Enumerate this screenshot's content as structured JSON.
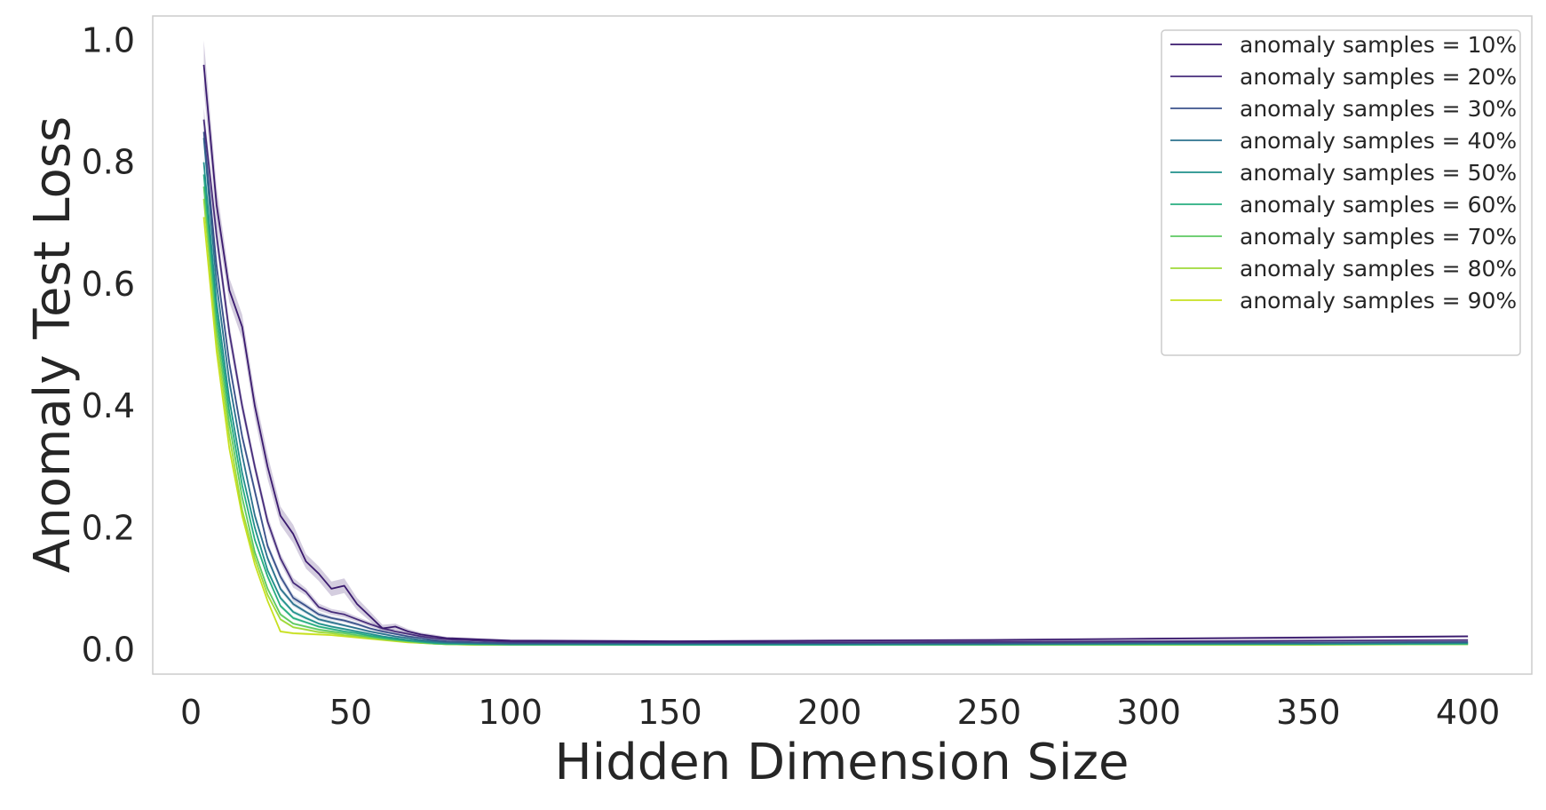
{
  "chart_data": {
    "type": "line",
    "title": "",
    "xlabel": "Hidden Dimension Size",
    "ylabel": "Anomaly Test Loss",
    "xlim": [
      -12,
      420
    ],
    "ylim": [
      -0.04,
      1.04
    ],
    "xticks": [
      0,
      50,
      100,
      150,
      200,
      250,
      300,
      350,
      400
    ],
    "xtick_labels": [
      "0",
      "50",
      "100",
      "150",
      "200",
      "250",
      "300",
      "350",
      "400"
    ],
    "yticks": [
      0.0,
      0.2,
      0.4,
      0.6,
      0.8,
      1.0
    ],
    "ytick_labels": [
      "0.0",
      "0.2",
      "0.4",
      "0.6",
      "0.8",
      "1.0"
    ],
    "grid": false,
    "legend_position": "top-right",
    "x": [
      4,
      8,
      12,
      16,
      20,
      24,
      28,
      32,
      36,
      40,
      44,
      48,
      52,
      56,
      60,
      64,
      68,
      72,
      76,
      80,
      90,
      100,
      150,
      200,
      250,
      300,
      350,
      400
    ],
    "series": [
      {
        "name": "anomaly samples = 10%",
        "color": "#3a1a6e",
        "values": [
          0.96,
          0.73,
          0.59,
          0.53,
          0.4,
          0.3,
          0.22,
          0.19,
          0.145,
          0.125,
          0.1,
          0.105,
          0.075,
          0.055,
          0.035,
          0.038,
          0.03,
          0.025,
          0.022,
          0.019,
          0.017,
          0.015,
          0.014,
          0.015,
          0.016,
          0.018,
          0.02,
          0.022
        ],
        "band": [
          0.04,
          0.03,
          0.02,
          0.02,
          0.02,
          0.02,
          0.015,
          0.015,
          0.012,
          0.012,
          0.012,
          0.012,
          0.01,
          0.008,
          0.006,
          0.005,
          0.004,
          0.003,
          0.003,
          0.002,
          0.002,
          0.002,
          0.002,
          0.002,
          0.002,
          0.002,
          0.002,
          0.002
        ]
      },
      {
        "name": "anomaly samples = 20%",
        "color": "#472d7b",
        "values": [
          0.87,
          0.68,
          0.52,
          0.4,
          0.3,
          0.21,
          0.15,
          0.11,
          0.095,
          0.07,
          0.062,
          0.058,
          0.05,
          0.042,
          0.035,
          0.03,
          0.026,
          0.022,
          0.019,
          0.017,
          0.015,
          0.013,
          0.012,
          0.012,
          0.013,
          0.014,
          0.015,
          0.016
        ],
        "band": [
          0.02,
          0.02,
          0.015,
          0.012,
          0.01,
          0.01,
          0.008,
          0.008,
          0.006,
          0.006,
          0.005,
          0.005,
          0.004,
          0.004,
          0.003,
          0.003,
          0.002,
          0.002,
          0.002,
          0.002,
          0.001,
          0.001,
          0.001,
          0.001,
          0.001,
          0.001,
          0.001,
          0.001
        ]
      },
      {
        "name": "anomaly samples = 30%",
        "color": "#3b528b",
        "values": [
          0.85,
          0.63,
          0.47,
          0.35,
          0.26,
          0.17,
          0.12,
          0.085,
          0.072,
          0.058,
          0.052,
          0.048,
          0.042,
          0.035,
          0.03,
          0.026,
          0.022,
          0.019,
          0.016,
          0.014,
          0.012,
          0.011,
          0.011,
          0.011,
          0.011,
          0.012,
          0.012,
          0.013
        ],
        "band": [
          0.015,
          0.012,
          0.01,
          0.008,
          0.008,
          0.006,
          0.006,
          0.005,
          0.004,
          0.004,
          0.003,
          0.003,
          0.003,
          0.002,
          0.002,
          0.002,
          0.002,
          0.001,
          0.001,
          0.001,
          0.001,
          0.001,
          0.001,
          0.001,
          0.001,
          0.001,
          0.001,
          0.001
        ]
      },
      {
        "name": "anomaly samples = 40%",
        "color": "#2c728e",
        "values": [
          0.84,
          0.6,
          0.44,
          0.32,
          0.22,
          0.15,
          0.1,
          0.075,
          0.062,
          0.05,
          0.045,
          0.04,
          0.035,
          0.03,
          0.026,
          0.022,
          0.019,
          0.016,
          0.014,
          0.012,
          0.011,
          0.01,
          0.01,
          0.01,
          0.01,
          0.011,
          0.011,
          0.012
        ],
        "band": [
          0.012,
          0.01,
          0.008,
          0.007,
          0.006,
          0.005,
          0.004,
          0.004,
          0.003,
          0.003,
          0.003,
          0.002,
          0.002,
          0.002,
          0.002,
          0.001,
          0.001,
          0.001,
          0.001,
          0.001,
          0.001,
          0.001,
          0.001,
          0.001,
          0.001,
          0.001,
          0.001,
          0.001
        ]
      },
      {
        "name": "anomaly samples = 50%",
        "color": "#21918c",
        "values": [
          0.8,
          0.57,
          0.41,
          0.29,
          0.2,
          0.13,
          0.085,
          0.062,
          0.052,
          0.043,
          0.038,
          0.034,
          0.03,
          0.026,
          0.022,
          0.019,
          0.016,
          0.014,
          0.012,
          0.011,
          0.01,
          0.009,
          0.009,
          0.009,
          0.009,
          0.01,
          0.01,
          0.011
        ],
        "band": [
          0.01,
          0.008,
          0.007,
          0.006,
          0.005,
          0.004,
          0.004,
          0.003,
          0.003,
          0.002,
          0.002,
          0.002,
          0.002,
          0.002,
          0.001,
          0.001,
          0.001,
          0.001,
          0.001,
          0.001,
          0.001,
          0.001,
          0.001,
          0.001,
          0.001,
          0.001,
          0.001,
          0.001
        ]
      },
      {
        "name": "anomaly samples = 60%",
        "color": "#28ae80",
        "values": [
          0.78,
          0.55,
          0.39,
          0.27,
          0.18,
          0.12,
          0.072,
          0.052,
          0.045,
          0.038,
          0.034,
          0.03,
          0.027,
          0.023,
          0.02,
          0.017,
          0.015,
          0.013,
          0.011,
          0.01,
          0.009,
          0.009,
          0.008,
          0.008,
          0.009,
          0.009,
          0.009,
          0.01
        ],
        "band": [
          0.008,
          0.007,
          0.006,
          0.005,
          0.004,
          0.004,
          0.003,
          0.003,
          0.002,
          0.002,
          0.002,
          0.002,
          0.002,
          0.001,
          0.001,
          0.001,
          0.001,
          0.001,
          0.001,
          0.001,
          0.001,
          0.001,
          0.001,
          0.001,
          0.001,
          0.001,
          0.001,
          0.001
        ]
      },
      {
        "name": "anomaly samples = 70%",
        "color": "#5ec962",
        "values": [
          0.76,
          0.53,
          0.37,
          0.25,
          0.16,
          0.1,
          0.058,
          0.043,
          0.038,
          0.033,
          0.03,
          0.027,
          0.024,
          0.021,
          0.018,
          0.016,
          0.014,
          0.012,
          0.01,
          0.009,
          0.009,
          0.008,
          0.008,
          0.008,
          0.008,
          0.009,
          0.009,
          0.009
        ],
        "band": [
          0.008,
          0.006,
          0.005,
          0.004,
          0.004,
          0.003,
          0.003,
          0.002,
          0.002,
          0.002,
          0.002,
          0.002,
          0.001,
          0.001,
          0.001,
          0.001,
          0.001,
          0.001,
          0.001,
          0.001,
          0.001,
          0.001,
          0.001,
          0.001,
          0.001,
          0.001,
          0.001,
          0.001
        ]
      },
      {
        "name": "anomaly samples = 80%",
        "color": "#9fda3a",
        "values": [
          0.74,
          0.51,
          0.35,
          0.23,
          0.15,
          0.09,
          0.05,
          0.037,
          0.033,
          0.029,
          0.027,
          0.024,
          0.022,
          0.019,
          0.017,
          0.015,
          0.013,
          0.011,
          0.01,
          0.009,
          0.008,
          0.008,
          0.008,
          0.008,
          0.008,
          0.008,
          0.009,
          0.009
        ],
        "band": [
          0.007,
          0.006,
          0.005,
          0.004,
          0.003,
          0.003,
          0.002,
          0.002,
          0.002,
          0.002,
          0.002,
          0.001,
          0.001,
          0.001,
          0.001,
          0.001,
          0.001,
          0.001,
          0.001,
          0.001,
          0.001,
          0.001,
          0.001,
          0.001,
          0.001,
          0.001,
          0.001,
          0.001
        ]
      },
      {
        "name": "anomaly samples = 90%",
        "color": "#c8e020",
        "values": [
          0.71,
          0.49,
          0.33,
          0.22,
          0.14,
          0.08,
          0.03,
          0.027,
          0.026,
          0.025,
          0.024,
          0.022,
          0.02,
          0.018,
          0.016,
          0.014,
          0.012,
          0.011,
          0.01,
          0.009,
          0.008,
          0.008,
          0.008,
          0.008,
          0.008,
          0.008,
          0.008,
          0.009
        ],
        "band": [
          0.006,
          0.005,
          0.004,
          0.004,
          0.003,
          0.003,
          0.002,
          0.002,
          0.002,
          0.002,
          0.001,
          0.001,
          0.001,
          0.001,
          0.001,
          0.001,
          0.001,
          0.001,
          0.001,
          0.001,
          0.001,
          0.001,
          0.001,
          0.001,
          0.001,
          0.001,
          0.001,
          0.001
        ]
      }
    ]
  }
}
